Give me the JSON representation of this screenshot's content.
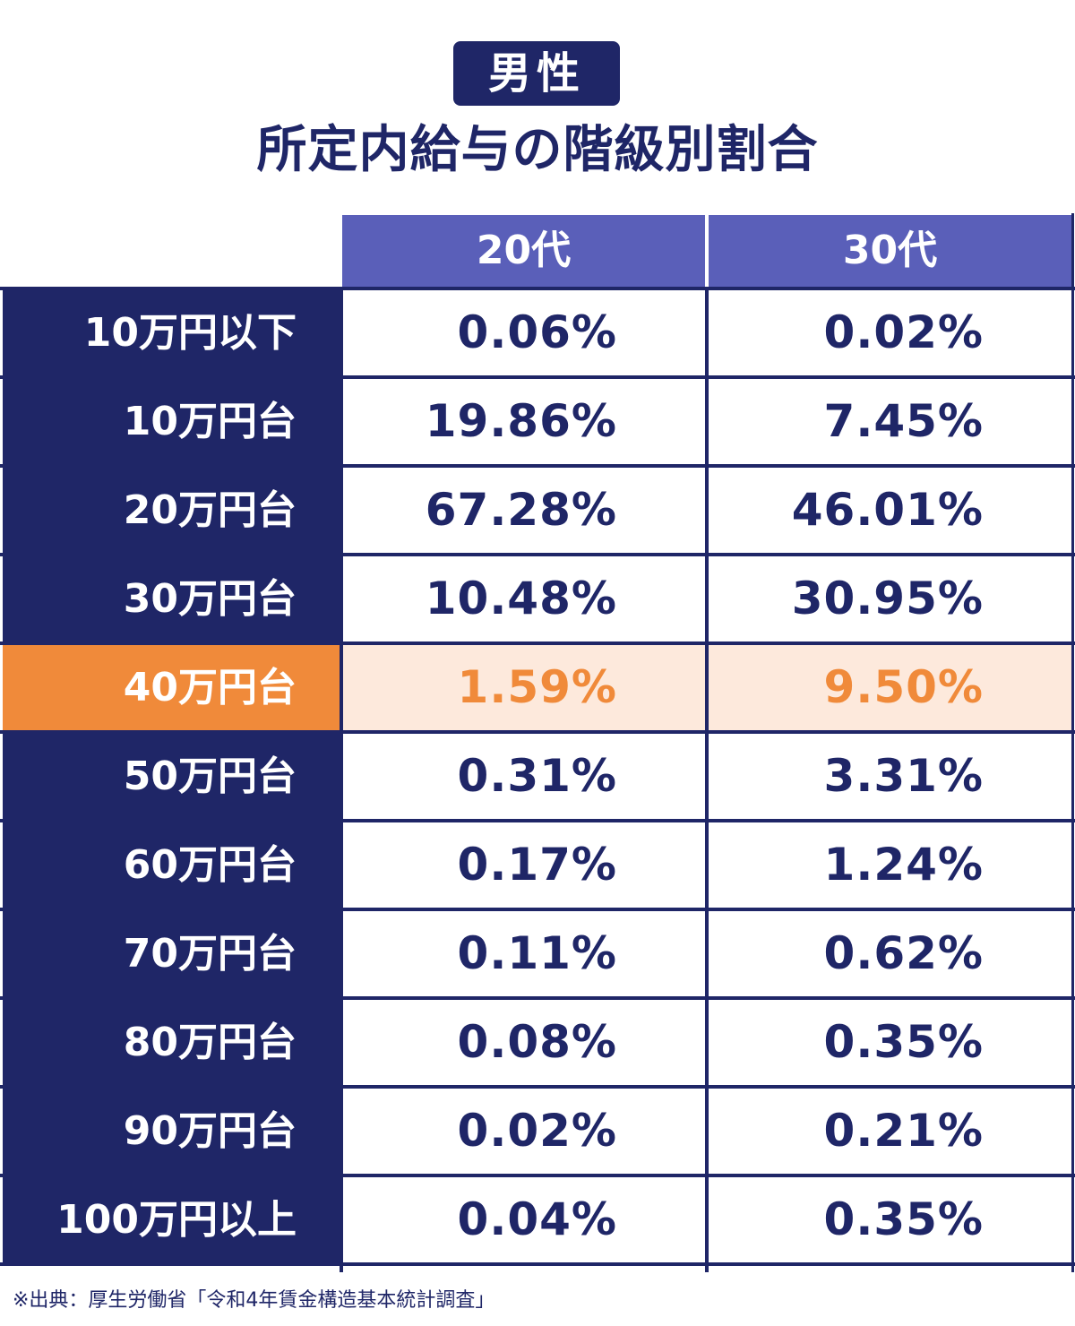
{
  "badge": "男性",
  "title": "所定内給与の階級別割合",
  "colors": {
    "navy": "#1f2667",
    "header_purple": "#5a5fb9",
    "highlight_orange": "#f08a3a",
    "highlight_bg": "#fde9dc"
  },
  "columns": [
    "20代",
    "30代"
  ],
  "source": "※出典：厚生労働省「令和4年賃金構造基本統計調査」",
  "chart_data": {
    "type": "table",
    "title": "所定内給与の階級別割合",
    "subtitle": "男性",
    "columns": [
      "20代",
      "30代"
    ],
    "highlight_row": "40万円台",
    "rows": [
      {
        "label": "10万円以下",
        "v20": "0.06%",
        "v30": "0.02%",
        "highlight": false
      },
      {
        "label": "10万円台",
        "v20": "19.86%",
        "v30": "7.45%",
        "highlight": false
      },
      {
        "label": "20万円台",
        "v20": "67.28%",
        "v30": "46.01%",
        "highlight": false
      },
      {
        "label": "30万円台",
        "v20": "10.48%",
        "v30": "30.95%",
        "highlight": false
      },
      {
        "label": "40万円台",
        "v20": "1.59%",
        "v30": "9.50%",
        "highlight": true
      },
      {
        "label": "50万円台",
        "v20": "0.31%",
        "v30": "3.31%",
        "highlight": false
      },
      {
        "label": "60万円台",
        "v20": "0.17%",
        "v30": "1.24%",
        "highlight": false
      },
      {
        "label": "70万円台",
        "v20": "0.11%",
        "v30": "0.62%",
        "highlight": false
      },
      {
        "label": "80万円台",
        "v20": "0.08%",
        "v30": "0.35%",
        "highlight": false
      },
      {
        "label": "90万円台",
        "v20": "0.02%",
        "v30": "0.21%",
        "highlight": false
      },
      {
        "label": "100万円以上",
        "v20": "0.04%",
        "v30": "0.35%",
        "highlight": false
      }
    ]
  }
}
